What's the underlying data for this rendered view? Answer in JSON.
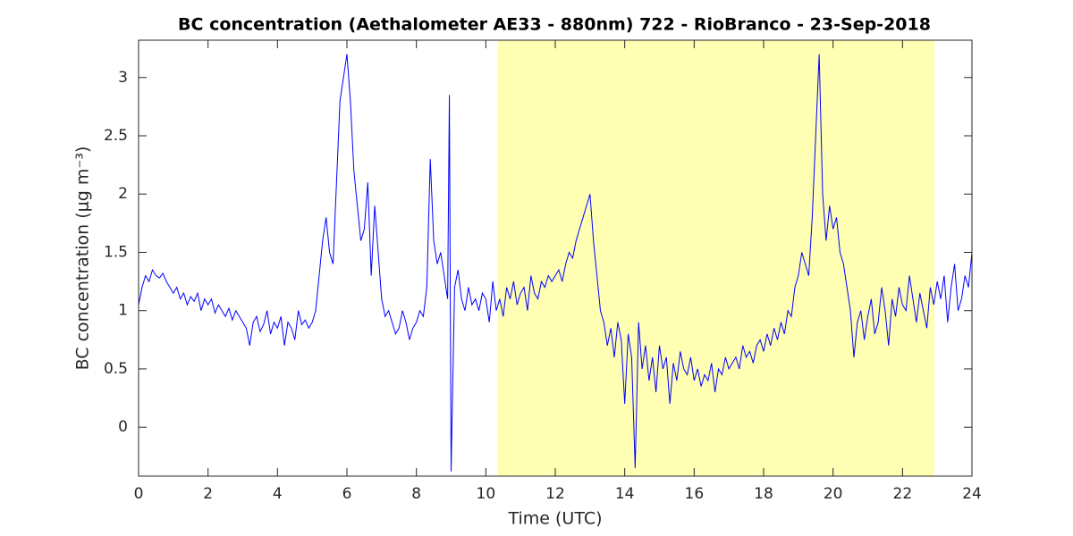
{
  "chart_data": {
    "type": "line",
    "title": "BC concentration (Aethalometer AE33 - 880nm) 722 - RioBranco - 23-Sep-2018",
    "xlabel": "Time (UTC)",
    "ylabel": "BC concentration (μg m⁻³)",
    "xlim": [
      0,
      24
    ],
    "ylim": [
      -0.42,
      3.32
    ],
    "xticks": [
      0,
      2,
      4,
      6,
      8,
      10,
      12,
      14,
      16,
      18,
      20,
      22,
      24
    ],
    "yticks": [
      0,
      0.5,
      1,
      1.5,
      2,
      2.5,
      3
    ],
    "shade_xlim": [
      10.35,
      22.92
    ],
    "shade_color": "#ffffb3",
    "grid": false,
    "x": [
      0.0,
      0.1,
      0.2,
      0.3,
      0.4,
      0.5,
      0.6,
      0.7,
      0.8,
      0.9,
      1.0,
      1.1,
      1.2,
      1.3,
      1.4,
      1.5,
      1.6,
      1.7,
      1.8,
      1.9,
      2.0,
      2.1,
      2.2,
      2.3,
      2.4,
      2.5,
      2.6,
      2.7,
      2.8,
      2.9,
      3.0,
      3.1,
      3.2,
      3.3,
      3.4,
      3.5,
      3.6,
      3.7,
      3.8,
      3.9,
      4.0,
      4.1,
      4.2,
      4.3,
      4.4,
      4.5,
      4.6,
      4.7,
      4.8,
      4.9,
      5.0,
      5.1,
      5.2,
      5.3,
      5.4,
      5.5,
      5.6,
      5.7,
      5.8,
      5.9,
      6.0,
      6.1,
      6.2,
      6.3,
      6.4,
      6.5,
      6.6,
      6.7,
      6.8,
      6.9,
      7.0,
      7.1,
      7.2,
      7.3,
      7.4,
      7.5,
      7.6,
      7.7,
      7.8,
      7.9,
      8.0,
      8.1,
      8.2,
      8.3,
      8.4,
      8.5,
      8.6,
      8.7,
      8.8,
      8.9,
      8.95,
      9.0,
      9.1,
      9.2,
      9.3,
      9.4,
      9.5,
      9.6,
      9.7,
      9.8,
      9.9,
      10.0,
      10.1,
      10.2,
      10.3,
      10.4,
      10.5,
      10.6,
      10.7,
      10.8,
      10.9,
      11.0,
      11.1,
      11.2,
      11.3,
      11.4,
      11.5,
      11.6,
      11.7,
      11.8,
      11.9,
      12.0,
      12.1,
      12.2,
      12.3,
      12.4,
      12.5,
      12.6,
      12.7,
      12.8,
      12.9,
      13.0,
      13.1,
      13.2,
      13.3,
      13.4,
      13.5,
      13.6,
      13.7,
      13.8,
      13.9,
      14.0,
      14.1,
      14.2,
      14.3,
      14.4,
      14.5,
      14.6,
      14.7,
      14.8,
      14.9,
      15.0,
      15.1,
      15.2,
      15.3,
      15.4,
      15.5,
      15.6,
      15.7,
      15.8,
      15.9,
      16.0,
      16.1,
      16.2,
      16.3,
      16.4,
      16.5,
      16.6,
      16.7,
      16.8,
      16.9,
      17.0,
      17.1,
      17.2,
      17.3,
      17.4,
      17.5,
      17.6,
      17.7,
      17.8,
      17.9,
      18.0,
      18.1,
      18.2,
      18.3,
      18.4,
      18.5,
      18.6,
      18.7,
      18.8,
      18.9,
      19.0,
      19.1,
      19.2,
      19.3,
      19.4,
      19.5,
      19.6,
      19.7,
      19.8,
      19.9,
      20.0,
      20.1,
      20.2,
      20.3,
      20.4,
      20.5,
      20.6,
      20.7,
      20.8,
      20.9,
      21.0,
      21.1,
      21.2,
      21.3,
      21.4,
      21.5,
      21.6,
      21.7,
      21.8,
      21.9,
      22.0,
      22.1,
      22.2,
      22.3,
      22.4,
      22.5,
      22.6,
      22.7,
      22.8,
      22.9,
      23.0,
      23.1,
      23.2,
      23.3,
      23.4,
      23.5,
      23.6,
      23.7,
      23.8,
      23.9,
      24.0
    ],
    "series": [
      {
        "color": "#0000ff",
        "values": [
          1.05,
          1.2,
          1.3,
          1.25,
          1.35,
          1.3,
          1.28,
          1.32,
          1.25,
          1.2,
          1.15,
          1.2,
          1.1,
          1.15,
          1.05,
          1.12,
          1.08,
          1.15,
          1.0,
          1.1,
          1.05,
          1.1,
          0.98,
          1.05,
          1.0,
          0.95,
          1.02,
          0.92,
          1.0,
          0.95,
          0.9,
          0.85,
          0.7,
          0.9,
          0.95,
          0.82,
          0.88,
          1.0,
          0.8,
          0.9,
          0.85,
          0.95,
          0.7,
          0.9,
          0.85,
          0.75,
          1.0,
          0.88,
          0.92,
          0.85,
          0.9,
          1.0,
          1.3,
          1.6,
          1.8,
          1.5,
          1.4,
          2.1,
          2.8,
          3.0,
          3.2,
          2.8,
          2.2,
          1.9,
          1.6,
          1.7,
          2.1,
          1.3,
          1.9,
          1.5,
          1.1,
          0.95,
          1.0,
          0.9,
          0.8,
          0.85,
          1.0,
          0.9,
          0.75,
          0.85,
          0.9,
          1.0,
          0.95,
          1.2,
          2.3,
          1.6,
          1.4,
          1.5,
          1.3,
          1.1,
          2.85,
          -0.38,
          1.2,
          1.35,
          1.1,
          1.0,
          1.2,
          1.05,
          1.1,
          1.0,
          1.15,
          1.1,
          0.9,
          1.25,
          1.0,
          1.1,
          0.95,
          1.2,
          1.1,
          1.25,
          1.05,
          1.15,
          1.2,
          1.0,
          1.3,
          1.15,
          1.1,
          1.25,
          1.2,
          1.3,
          1.25,
          1.3,
          1.35,
          1.25,
          1.4,
          1.5,
          1.45,
          1.6,
          1.7,
          1.8,
          1.9,
          2.0,
          1.6,
          1.3,
          1.0,
          0.9,
          0.7,
          0.85,
          0.6,
          0.9,
          0.75,
          0.2,
          0.8,
          0.6,
          -0.35,
          0.9,
          0.5,
          0.7,
          0.4,
          0.6,
          0.3,
          0.7,
          0.5,
          0.6,
          0.2,
          0.55,
          0.4,
          0.65,
          0.5,
          0.45,
          0.6,
          0.4,
          0.5,
          0.35,
          0.45,
          0.4,
          0.55,
          0.3,
          0.5,
          0.45,
          0.6,
          0.5,
          0.55,
          0.6,
          0.5,
          0.7,
          0.6,
          0.65,
          0.55,
          0.7,
          0.75,
          0.65,
          0.8,
          0.7,
          0.85,
          0.75,
          0.9,
          0.8,
          1.0,
          0.95,
          1.2,
          1.3,
          1.5,
          1.4,
          1.3,
          1.8,
          2.5,
          3.2,
          2.0,
          1.6,
          1.9,
          1.7,
          1.8,
          1.5,
          1.4,
          1.2,
          1.0,
          0.6,
          0.9,
          1.0,
          0.75,
          0.95,
          1.1,
          0.8,
          0.9,
          1.2,
          1.0,
          0.7,
          1.1,
          0.95,
          1.2,
          1.05,
          1.0,
          1.3,
          1.1,
          0.9,
          1.15,
          1.0,
          0.85,
          1.2,
          1.05,
          1.25,
          1.1,
          1.3,
          0.9,
          1.2,
          1.4,
          1.0,
          1.1,
          1.3,
          1.2,
          1.5
        ]
      }
    ]
  }
}
